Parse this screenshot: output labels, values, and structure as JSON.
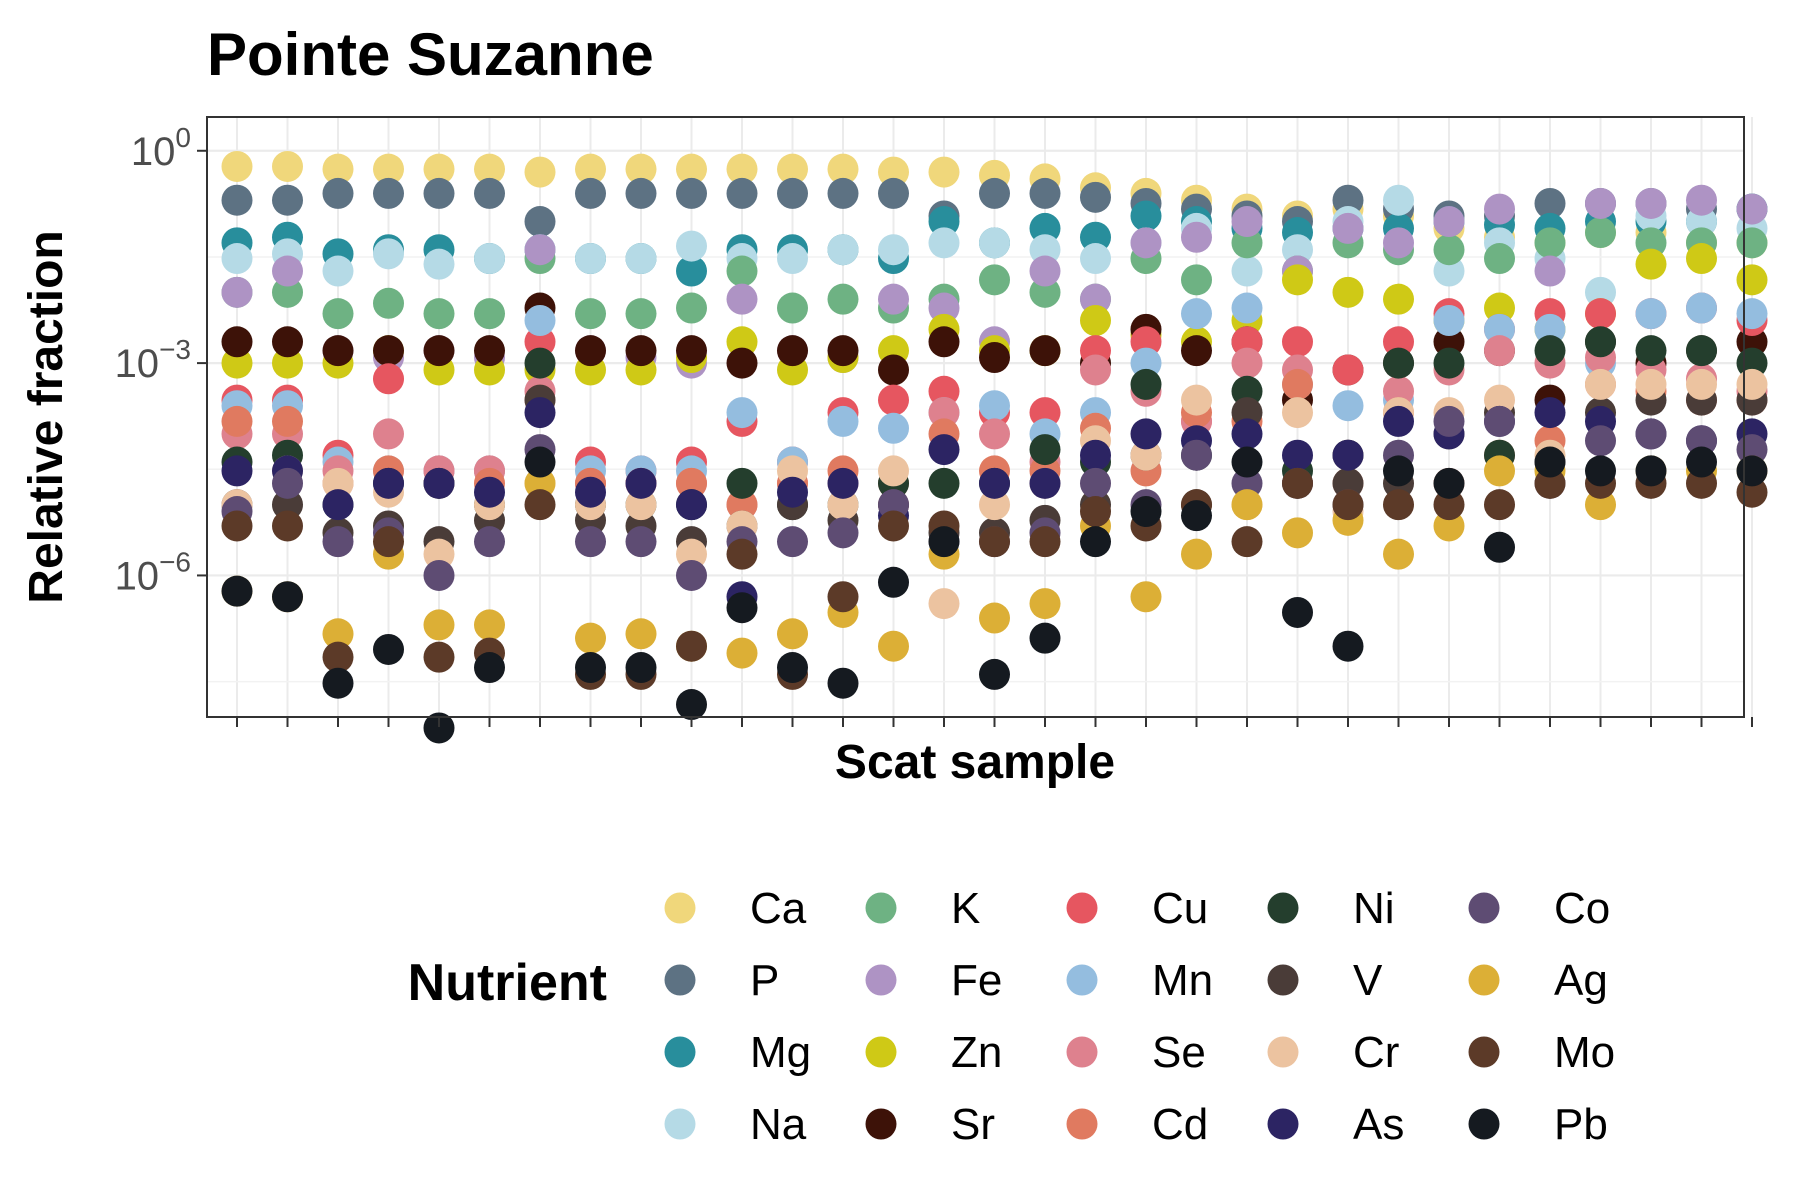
{
  "chart_data": {
    "type": "scatter",
    "title": "Pointe Suzanne",
    "xlabel": "Scat sample",
    "ylabel": "Relative fraction",
    "y_scale": "log10",
    "ylim": [
      1e-08,
      3
    ],
    "y_ticks": [
      {
        "value": 1,
        "base": "10",
        "exponent": "0"
      },
      {
        "value": 0.001,
        "base": "10",
        "exponent": "−3"
      },
      {
        "value": 1e-06,
        "base": "10",
        "exponent": "−6"
      }
    ],
    "x_tick_labels": "none",
    "grid": true,
    "legend": {
      "title": "Nutrient",
      "position": "bottom",
      "columns": 6
    },
    "n_samples": 31,
    "series": [
      {
        "name": "Ca",
        "color": "#f0d77b",
        "values": [
          0.6,
          0.6,
          0.55,
          0.55,
          0.55,
          0.55,
          0.5,
          0.55,
          0.55,
          0.55,
          0.55,
          0.55,
          0.55,
          0.5,
          0.5,
          0.45,
          0.4,
          0.3,
          0.25,
          0.2,
          0.15,
          0.12,
          0.15,
          0.12,
          0.08,
          0.06,
          0.05,
          0.07,
          0.07,
          0.05,
          0.05
        ]
      },
      {
        "name": "P",
        "color": "#5d7283",
        "values": [
          0.2,
          0.2,
          0.25,
          0.25,
          0.25,
          0.25,
          0.1,
          0.25,
          0.25,
          0.25,
          0.25,
          0.25,
          0.25,
          0.25,
          0.12,
          0.25,
          0.25,
          0.22,
          0.18,
          0.15,
          0.12,
          0.1,
          0.2,
          0.15,
          0.12,
          0.12,
          0.18,
          0.18,
          0.18,
          0.15,
          0.15
        ]
      },
      {
        "name": "Mg",
        "color": "#288e9c",
        "values": [
          0.05,
          0.06,
          0.035,
          0.04,
          0.04,
          0.03,
          0.04,
          0.03,
          0.03,
          0.02,
          0.04,
          0.04,
          0.04,
          0.03,
          0.1,
          0.05,
          0.08,
          0.06,
          0.12,
          0.1,
          0.08,
          0.07,
          0.08,
          0.08,
          0.1,
          0.09,
          0.08,
          0.1,
          0.1,
          0.1,
          0.15
        ]
      },
      {
        "name": "Na",
        "color": "#b5dae6",
        "values": [
          0.03,
          0.035,
          0.02,
          0.035,
          0.025,
          0.03,
          0.04,
          0.03,
          0.03,
          0.045,
          0.03,
          0.03,
          0.04,
          0.04,
          0.05,
          0.05,
          0.04,
          0.03,
          0.05,
          0.08,
          0.02,
          0.04,
          0.1,
          0.2,
          0.02,
          0.05,
          0.03,
          0.01,
          0.12,
          0.1,
          0.08
        ]
      },
      {
        "name": "K",
        "color": "#6eb283",
        "values": [
          0.01,
          0.01,
          0.005,
          0.007,
          0.005,
          0.005,
          0.03,
          0.005,
          0.005,
          0.006,
          0.02,
          0.006,
          0.008,
          0.006,
          0.008,
          0.015,
          0.01,
          0.008,
          0.03,
          0.015,
          0.05,
          0.02,
          0.05,
          0.04,
          0.04,
          0.03,
          0.05,
          0.07,
          0.05,
          0.05,
          0.05
        ]
      },
      {
        "name": "Fe",
        "color": "#ae93c4",
        "values": [
          0.01,
          0.02,
          0.0015,
          0.0012,
          0.0015,
          0.0012,
          0.04,
          0.0015,
          0.0012,
          0.001,
          0.008,
          0.0015,
          0.0012,
          0.008,
          0.006,
          0.002,
          0.02,
          0.008,
          0.05,
          0.06,
          0.1,
          0.02,
          0.08,
          0.05,
          0.1,
          0.15,
          0.02,
          0.18,
          0.18,
          0.2,
          0.15
        ]
      },
      {
        "name": "Zn",
        "color": "#cfc916",
        "values": [
          0.001,
          0.001,
          0.001,
          0.0015,
          0.0008,
          0.0008,
          0.0008,
          0.0008,
          0.0008,
          0.0012,
          0.002,
          0.0008,
          0.0012,
          0.0015,
          0.003,
          0.0015,
          0.0015,
          0.004,
          0.0025,
          0.002,
          0.004,
          0.015,
          0.01,
          0.008,
          0.004,
          0.006,
          0.003,
          0.005,
          0.025,
          0.03,
          0.015
        ]
      },
      {
        "name": "Sr",
        "color": "#3d1208",
        "values": [
          0.002,
          0.002,
          0.0015,
          0.0015,
          0.0015,
          0.0015,
          0.006,
          0.0015,
          0.0015,
          0.0015,
          0.001,
          0.0015,
          0.0015,
          0.0008,
          0.002,
          0.0012,
          0.0015,
          0.001,
          0.003,
          0.0015,
          0.002,
          0.0003,
          0.0008,
          0.001,
          0.002,
          0.0015,
          0.0003,
          0.002,
          0.001,
          0.0015,
          0.002
        ]
      },
      {
        "name": "Cu",
        "color": "#e65660",
        "values": [
          0.0003,
          0.0003,
          5e-05,
          0.0006,
          3e-05,
          3e-05,
          0.002,
          4e-05,
          3e-05,
          4e-05,
          0.00015,
          4e-05,
          0.0002,
          0.0003,
          0.0004,
          0.0002,
          0.0002,
          0.0015,
          0.002,
          0.00015,
          0.002,
          0.002,
          0.0008,
          0.002,
          0.005,
          0.003,
          0.005,
          0.005,
          0.005,
          0.006,
          0.004
        ]
      },
      {
        "name": "Mn",
        "color": "#94bddf",
        "values": [
          0.00025,
          0.00025,
          4e-05,
          3e-05,
          3e-05,
          3e-05,
          0.004,
          3e-05,
          3e-05,
          3e-05,
          0.0002,
          4e-05,
          0.00015,
          0.00012,
          0.0002,
          0.00025,
          0.0001,
          0.0002,
          0.001,
          0.005,
          0.006,
          0.0005,
          0.00025,
          0.0003,
          0.004,
          0.003,
          0.003,
          0.001,
          0.005,
          0.006,
          0.005
        ]
      },
      {
        "name": "Se",
        "color": "#de818e",
        "values": [
          0.0001,
          0.0001,
          3e-05,
          0.0001,
          3e-05,
          3e-05,
          0.0004,
          2e-05,
          2e-05,
          2e-05,
          1e-05,
          2e-05,
          2e-05,
          1e-05,
          0.0002,
          0.0001,
          4e-05,
          0.0008,
          0.0004,
          0.00015,
          0.001,
          0.0008,
          5e-05,
          0.0004,
          0.0008,
          0.0015,
          0.001,
          0.0012,
          0.0008,
          0.0006,
          0.0004
        ]
      },
      {
        "name": "Cd",
        "color": "#e07a60",
        "values": [
          0.00015,
          0.00015,
          2e-05,
          3e-05,
          2e-05,
          2e-05,
          0.0003,
          2e-05,
          2e-05,
          2e-05,
          1e-05,
          2e-05,
          3e-05,
          2e-05,
          0.0001,
          3e-05,
          3e-05,
          0.00012,
          3e-05,
          0.0002,
          0.00015,
          0.0005,
          2e-05,
          0.0002,
          2e-05,
          5e-05,
          8e-05,
          0.0005,
          0.0004,
          0.0003,
          0.0003
        ]
      },
      {
        "name": "Ni",
        "color": "#243e2d",
        "values": [
          4e-05,
          5e-05,
          1e-05,
          2e-05,
          2e-05,
          1e-05,
          0.001,
          1e-05,
          1e-05,
          1e-05,
          2e-05,
          1e-05,
          1e-05,
          2e-05,
          2e-05,
          2e-05,
          6e-05,
          4e-05,
          0.0005,
          5e-05,
          0.0004,
          3e-05,
          5e-05,
          0.001,
          0.001,
          5e-05,
          0.0015,
          0.002,
          0.0015,
          0.0015,
          0.001
        ]
      },
      {
        "name": "V",
        "color": "#4a3c38",
        "values": [
          1e-05,
          1e-05,
          4e-06,
          5e-06,
          3e-06,
          6e-06,
          0.0003,
          6e-06,
          5e-06,
          3e-06,
          5e-06,
          1e-05,
          6e-06,
          1e-05,
          4e-06,
          4e-06,
          6e-06,
          1e-05,
          5e-05,
          1e-05,
          0.0002,
          2e-05,
          2e-05,
          2e-05,
          0.0001,
          0.0002,
          4e-05,
          0.0002,
          0.0003,
          0.0003,
          0.0003
        ]
      },
      {
        "name": "Cr",
        "color": "#ecc3a0",
        "values": [
          1e-05,
          3e-05,
          2e-05,
          1.5e-05,
          2e-06,
          1e-05,
          2e-05,
          1e-05,
          1e-05,
          2e-06,
          5e-06,
          3e-05,
          1e-05,
          3e-05,
          4e-07,
          1e-05,
          2e-05,
          8e-05,
          5e-05,
          0.0003,
          1e-05,
          0.0002,
          8e-06,
          0.0002,
          0.0002,
          0.0003,
          5e-05,
          0.0005,
          0.0005,
          0.0005,
          0.0005
        ]
      },
      {
        "name": "As",
        "color": "#2c2463",
        "values": [
          3e-05,
          3e-05,
          1e-05,
          2e-05,
          2e-05,
          1.5e-05,
          0.0002,
          1.5e-05,
          2e-05,
          1e-05,
          5e-07,
          1.5e-05,
          2e-05,
          7e-06,
          6e-05,
          2e-05,
          2e-05,
          5e-05,
          0.0001,
          8e-05,
          0.0001,
          5e-05,
          5e-05,
          0.00015,
          0.0001,
          0.00015,
          0.0002,
          0.00015,
          0.0001,
          8e-05,
          0.0001
        ]
      },
      {
        "name": "Co",
        "color": "#5e4c73",
        "values": [
          8e-06,
          2e-05,
          3e-06,
          4e-06,
          1e-06,
          3e-06,
          6e-05,
          3e-06,
          3e-06,
          1e-06,
          3e-06,
          3e-06,
          4e-06,
          1e-05,
          3e-06,
          3e-06,
          4e-06,
          2e-05,
          1e-05,
          5e-05,
          2e-05,
          2e-05,
          1e-05,
          5e-05,
          0.00015,
          0.00015,
          2e-05,
          8e-05,
          0.0001,
          8e-05,
          6e-05
        ]
      },
      {
        "name": "Ag",
        "color": "#dcaf36",
        "values": [
          6e-07,
          5e-07,
          1.5e-07,
          2e-06,
          2e-07,
          2e-07,
          2e-05,
          1.3e-07,
          1.5e-07,
          1e-07,
          8e-08,
          1.5e-07,
          3e-07,
          1e-07,
          2e-06,
          2.5e-07,
          4e-07,
          5e-06,
          5e-07,
          2e-06,
          1e-05,
          4e-06,
          6e-06,
          2e-06,
          5e-06,
          3e-05,
          3e-05,
          1e-05,
          3e-05,
          3e-05,
          3e-05
        ]
      },
      {
        "name": "Mo",
        "color": "#5c3a28",
        "values": [
          5e-06,
          5e-06,
          7e-08,
          3e-06,
          7e-08,
          8e-08,
          1e-05,
          4e-08,
          4e-08,
          1e-07,
          2e-06,
          4e-08,
          5e-07,
          5e-06,
          5e-06,
          3e-06,
          3e-06,
          8e-06,
          5e-06,
          1e-05,
          3e-06,
          2e-05,
          1e-05,
          1e-05,
          1e-05,
          1e-05,
          2e-05,
          2e-05,
          2e-05,
          2e-05,
          1.5e-05
        ]
      },
      {
        "name": "Pb",
        "color": "#151a20",
        "values": [
          6e-07,
          5e-07,
          3e-08,
          9e-08,
          7e-09,
          5e-08,
          4e-05,
          5e-08,
          5e-08,
          1.5e-08,
          3.5e-07,
          5e-08,
          3e-08,
          8e-07,
          3e-06,
          4e-08,
          1.3e-07,
          3e-06,
          8e-06,
          7e-06,
          4e-05,
          3e-07,
          1e-07,
          3e-05,
          2e-05,
          2.5e-06,
          4e-05,
          3e-05,
          3e-05,
          4e-05,
          3e-05
        ]
      }
    ]
  }
}
